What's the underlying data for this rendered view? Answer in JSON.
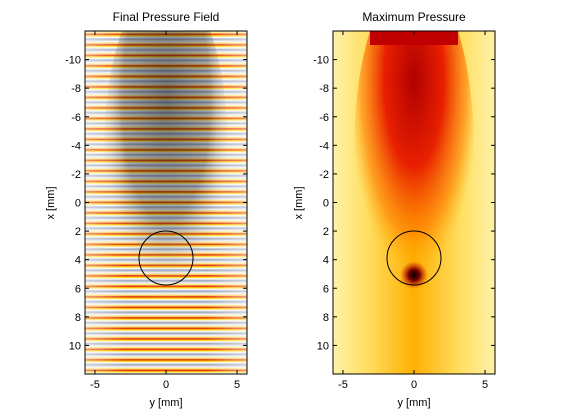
{
  "chart_data": [
    {
      "type": "heatmap",
      "title": "Final Pressure Field",
      "xlabel": "y [mm]",
      "ylabel": "x [mm]",
      "xlim": [
        -5.7,
        5.7
      ],
      "ylim": [
        -12,
        12
      ],
      "y_reversed": true,
      "xticks": [
        -5,
        0,
        5
      ],
      "yticks": [
        -10,
        -8,
        -6,
        -4,
        -2,
        0,
        2,
        4,
        6,
        8,
        10
      ],
      "colormap": "hot-cold (blue / white / yellow / red / black)",
      "circle": {
        "center_y": 0,
        "center_x": 4,
        "radius": 1.9
      },
      "description": "focused acoustic wavefield with horizontal wave fronts, dark beam along the center"
    },
    {
      "type": "heatmap",
      "title": "Maximum Pressure",
      "xlabel": "y [mm]",
      "ylabel": "x [mm]",
      "xlim": [
        -5.7,
        5.7
      ],
      "ylim": [
        -12,
        12
      ],
      "y_reversed": true,
      "xticks": [
        -5,
        0,
        5
      ],
      "yticks": [
        -10,
        -8,
        -6,
        -4,
        -2,
        0,
        2,
        4,
        6,
        8,
        10
      ],
      "colormap": "hot (white / yellow / red / black)",
      "circle": {
        "center_y": 0,
        "center_x": 4,
        "radius": 1.9
      },
      "focus": {
        "y": 0,
        "x": 5.2
      },
      "description": "beam of high pressure from the transducer at top, converging in the circle"
    }
  ]
}
